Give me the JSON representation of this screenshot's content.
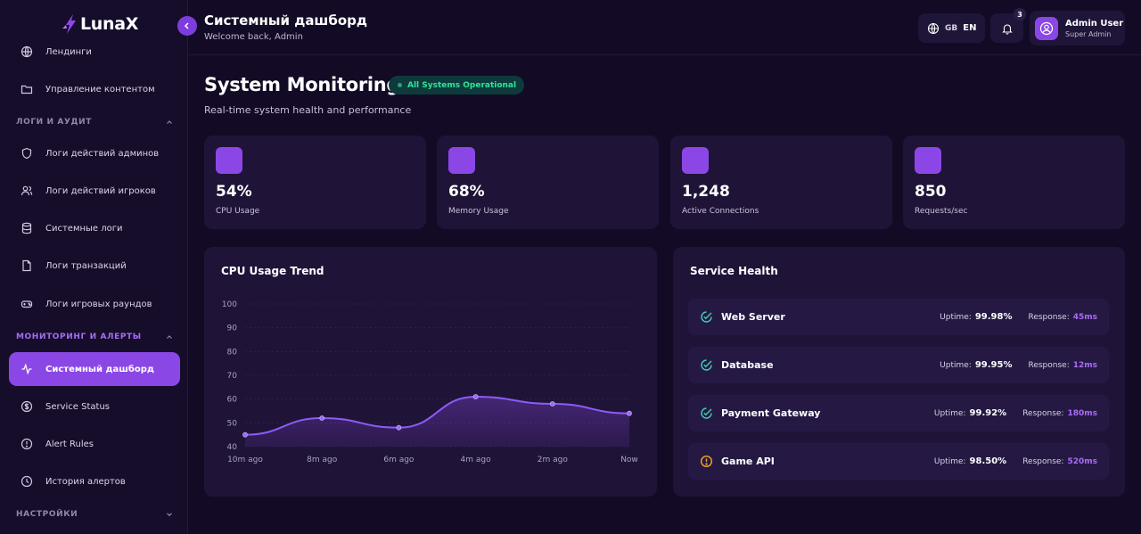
{
  "app": {
    "logo_text": "LunaX"
  },
  "sidebar": {
    "items": [
      {
        "label": "Лендинги",
        "icon": "globe-icon"
      },
      {
        "label": "Управление контентом",
        "icon": "folder-icon"
      },
      {
        "label": "Логи действий админов",
        "icon": "shield-icon"
      },
      {
        "label": "Логи действий игроков",
        "icon": "users-icon"
      },
      {
        "label": "Системные логи",
        "icon": "database-icon"
      },
      {
        "label": "Логи транзакций",
        "icon": "file-icon"
      },
      {
        "label": "Логи игровых раундов",
        "icon": "gamepad-icon"
      },
      {
        "label": "Системный дашборд",
        "icon": "activity-icon",
        "active": true
      },
      {
        "label": "Service Status",
        "icon": "dollar-circle-icon"
      },
      {
        "label": "Alert Rules",
        "icon": "alert-circle-icon"
      },
      {
        "label": "История алертов",
        "icon": "clock-icon"
      }
    ],
    "sections": [
      {
        "label": "ЛОГИ И АУДИТ"
      },
      {
        "label": "МОНИТОРИНГ И АЛЕРТЫ"
      },
      {
        "label": "НАСТРОЙКИ"
      }
    ]
  },
  "header": {
    "title": "Системный дашборд",
    "subtitle": "Welcome back, Admin",
    "lang_country": "GB",
    "lang_code": "EN",
    "notifications_count": "3",
    "user_name": "Admin User",
    "user_role": "Super Admin"
  },
  "main": {
    "title": "System Monitoring",
    "status": "All Systems Operational",
    "subtitle": "Real-time system health and performance"
  },
  "stats": [
    {
      "value": "54%",
      "label": "CPU Usage"
    },
    {
      "value": "68%",
      "label": "Memory Usage"
    },
    {
      "value": "1,248",
      "label": "Active Connections"
    },
    {
      "value": "850",
      "label": "Requests/sec"
    }
  ],
  "colors": {
    "accent": "#8b47e6",
    "background": "#130b26",
    "card": "#1f1437",
    "success": "#2ee59a",
    "warning": "#f5a524",
    "check": "#3fd1b0"
  },
  "cpu_panel": {
    "title": "CPU Usage Trend"
  },
  "chart_data": {
    "type": "area",
    "title": "CPU Usage Trend",
    "categories": [
      "10m ago",
      "8m ago",
      "6m ago",
      "4m ago",
      "2m ago",
      "Now"
    ],
    "values": [
      45,
      52,
      48,
      61,
      58,
      54
    ],
    "ylim": [
      40,
      100
    ],
    "yticks": [
      40,
      50,
      60,
      70,
      80,
      90,
      100
    ],
    "grid": true,
    "xlabel": "",
    "ylabel": ""
  },
  "service_panel": {
    "title": "Service Health",
    "uptime_label": "Uptime:",
    "response_label": "Response:",
    "services": [
      {
        "name": "Web Server",
        "uptime": "99.98%",
        "response": "45ms",
        "status": "ok"
      },
      {
        "name": "Database",
        "uptime": "99.95%",
        "response": "12ms",
        "status": "ok"
      },
      {
        "name": "Payment Gateway",
        "uptime": "99.92%",
        "response": "180ms",
        "status": "ok"
      },
      {
        "name": "Game API",
        "uptime": "98.50%",
        "response": "520ms",
        "status": "warning"
      }
    ]
  }
}
